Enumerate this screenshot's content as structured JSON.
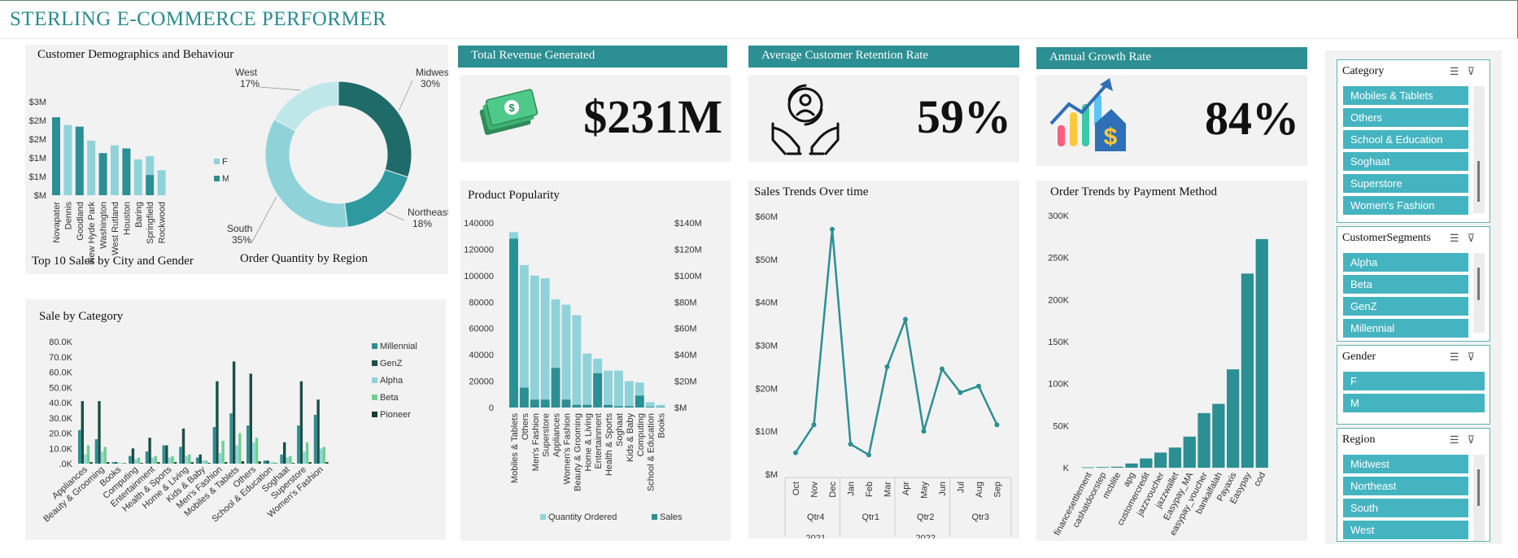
{
  "header": {
    "title": "STERLING E-COMMERCE PERFORMER"
  },
  "colors": {
    "teal_dark": "#226e6f",
    "teal": "#2b8f93",
    "teal_light": "#8fd3d9",
    "teal_pale": "#bfe7ea",
    "green": "#6fcf8f",
    "dark": "#1a4f48",
    "accent_slicer": "#45b4c1"
  },
  "demographics": {
    "title": "Customer Demographics and Behaviour",
    "bar_caption": "Top 10 Sales by City and Gender",
    "donut_caption": "Order Quantity  by Region"
  },
  "kpis": {
    "revenue": {
      "title": "Total Revenue Generated",
      "value": "$231M",
      "icon": "money-icon"
    },
    "retention": {
      "title": "Average Customer Retention Rate",
      "value": "59%",
      "icon": "care-icon"
    },
    "growth": {
      "title": "Annual Growth Rate",
      "value": "84%",
      "icon": "growth-icon"
    }
  },
  "chart_data": [
    {
      "id": "city_gender",
      "type": "bar",
      "title": "Top 10 Sales by City and Gender",
      "categories": [
        "Novapater",
        "Dennis",
        "Goodland",
        "New Hyde Park",
        "Washington",
        "West Rutland",
        "Houston",
        "Baring",
        "Springfield",
        "Rockwood"
      ],
      "series": [
        {
          "name": "F",
          "values": [
            0,
            2.25,
            0,
            1.75,
            0,
            1.6,
            0,
            1.15,
            0.6,
            0.8
          ]
        },
        {
          "name": "M",
          "values": [
            2.5,
            0,
            2.2,
            0,
            1.35,
            0,
            1.5,
            0,
            0.65,
            0
          ]
        }
      ],
      "yticks": [
        "$M",
        "$1M",
        "$1M",
        "$2M",
        "$2M",
        "$3M"
      ],
      "ylim": [
        0,
        3
      ]
    },
    {
      "id": "region_qty",
      "type": "pie",
      "title": "Order Quantity  by Region",
      "slices": [
        {
          "label": "Midwest",
          "value": 30
        },
        {
          "label": "Northeast",
          "value": 18
        },
        {
          "label": "South",
          "value": 35
        },
        {
          "label": "West",
          "value": 17
        }
      ],
      "pct_labels": [
        "30%",
        "18%",
        "35%",
        "17%"
      ]
    },
    {
      "id": "category_sales",
      "type": "bar",
      "title": "Sale by Category",
      "categories": [
        "Appliances",
        "Beauty & Grooming",
        "Books",
        "Computing",
        "Entertainment",
        "Health & Sports",
        "Home & Living",
        "Kids & Baby",
        "Men's Fashion",
        "Mobiles & Tablets",
        "Others",
        "School & Education",
        "Soghaat",
        "Superstore",
        "Women's Fashion"
      ],
      "series": [
        {
          "name": "Millennial",
          "values": [
            22,
            16,
            1,
            5,
            8,
            12,
            11,
            4,
            24,
            33,
            25,
            2,
            6,
            25,
            32
          ]
        },
        {
          "name": "GenZ",
          "values": [
            41,
            41,
            1,
            10,
            17,
            12,
            23,
            6,
            54,
            67,
            59,
            2,
            14,
            54,
            42
          ]
        },
        {
          "name": "Alpha",
          "values": [
            6,
            8,
            0.5,
            3,
            4,
            4,
            5,
            2,
            7,
            12,
            14,
            1,
            4,
            8,
            10
          ]
        },
        {
          "name": "Beta",
          "values": [
            12,
            11,
            0.5,
            4,
            5,
            5,
            6,
            2,
            15,
            20,
            17,
            1,
            5,
            14,
            11
          ]
        },
        {
          "name": "Pioneer",
          "values": [
            1,
            1,
            0.3,
            0.5,
            1,
            1,
            1,
            0.5,
            1,
            1.5,
            1.5,
            0.3,
            0.5,
            1,
            1
          ]
        }
      ],
      "yticks": [
        ".0K",
        "10.0K",
        "20.0K",
        "30.0K",
        "40.0K",
        "50.0K",
        "60.0K",
        "70.0K",
        "80.0K"
      ],
      "ylim": [
        0,
        80000
      ]
    },
    {
      "id": "product_popularity",
      "type": "bar",
      "title": "Product Popularity",
      "categories": [
        "Mobiles & Tablets",
        "Others",
        "Men's Fashion",
        "Superstore",
        "Appliances",
        "Women's Fashion",
        "Beauty & Grooming",
        "Home & Living",
        "Entertainment",
        "Health & Sports",
        "Soghaat",
        "Kids & Baby",
        "Computing",
        "School & Education",
        "Books"
      ],
      "series": [
        {
          "name": "Quantity Ordered",
          "values": [
            133000,
            108000,
            100000,
            98000,
            82000,
            78000,
            70000,
            41000,
            37000,
            28000,
            28000,
            20000,
            19000,
            4000,
            2000
          ]
        },
        {
          "name": "Sales",
          "values": [
            128,
            15,
            6,
            6,
            30,
            6,
            2,
            2,
            26,
            2,
            1,
            1,
            9,
            0.5,
            0.3
          ]
        }
      ],
      "yticks_left": [
        "0",
        "20000",
        "40000",
        "60000",
        "80000",
        "100000",
        "120000",
        "140000"
      ],
      "yticks_right": [
        "$M",
        "$20M",
        "$40M",
        "$60M",
        "$80M",
        "$100M",
        "$120M",
        "$140M"
      ]
    },
    {
      "id": "sales_trend",
      "type": "line",
      "title": "Sales Trends Over time",
      "x": [
        "Oct",
        "Nov",
        "Dec",
        "Jan",
        "Feb",
        "Mar",
        "Apr",
        "May",
        "Jun",
        "Jul",
        "Aug",
        "Sep"
      ],
      "quarters": [
        {
          "label": "Qtr4",
          "span": 3
        },
        {
          "label": "Qtr1",
          "span": 3
        },
        {
          "label": "Qtr2",
          "span": 3
        },
        {
          "label": "Qtr3",
          "span": 3
        }
      ],
      "years": [
        {
          "label": "2021",
          "span": 3
        },
        {
          "label": "2022",
          "span": 9
        }
      ],
      "values": [
        5,
        11.5,
        57,
        7,
        4.5,
        25,
        36,
        10,
        24.5,
        19,
        20.5,
        11.5
      ],
      "yticks": [
        "$M",
        "$10M",
        "$20M",
        "$30M",
        "$40M",
        "$50M",
        "$60M"
      ],
      "ylim": [
        0,
        60
      ]
    },
    {
      "id": "payment_method",
      "type": "bar",
      "title": "Order Trends by Payment Method",
      "categories": [
        "financesettlement",
        "cashatdoorstep",
        "mcblite",
        "apg",
        "customercredit",
        "jazzvoucher",
        "jazzwallet",
        "Easypay_MA",
        "easypay_voucher",
        "bankalfalah",
        "Payaxis",
        "Easypay",
        "cod"
      ],
      "values": [
        500,
        800,
        1200,
        5000,
        11000,
        18000,
        24000,
        37000,
        65000,
        76000,
        117000,
        231000,
        272000
      ],
      "yticks": [
        "K",
        "50K",
        "100K",
        "150K",
        "200K",
        "250K",
        "300K"
      ],
      "ylim": [
        0,
        300000
      ]
    }
  ],
  "slicers": {
    "category": {
      "title": "Category",
      "items": [
        "Mobiles & Tablets",
        "Others",
        "School & Education",
        "Soghaat",
        "Superstore",
        "Women's Fashion"
      ]
    },
    "segments": {
      "title": "CustomerSegments",
      "items": [
        "Alpha",
        "Beta",
        "GenZ",
        "Millennial"
      ]
    },
    "gender": {
      "title": "Gender",
      "items": [
        "F",
        "M"
      ]
    },
    "region": {
      "title": "Region",
      "items": [
        "Midwest",
        "Northeast",
        "South",
        "West"
      ]
    }
  }
}
